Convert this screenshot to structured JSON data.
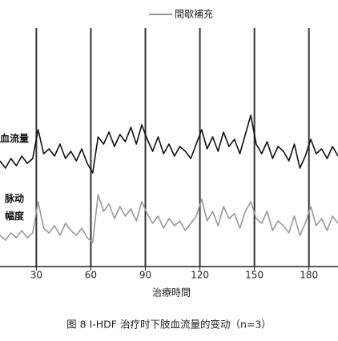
{
  "chart_data": {
    "type": "line",
    "title": "图 8   I-HDF 治疗时下肢血流量的变动（n=3）",
    "x_label": "治療時間",
    "annotation": {
      "text": "間歇補充",
      "x": [
        30,
        60,
        90,
        120,
        150,
        180
      ]
    },
    "xlim": [
      10,
      196
    ],
    "xticks": [
      30,
      60,
      90,
      120,
      150,
      180
    ],
    "ylim": [
      0,
      100
    ],
    "x": [
      10,
      13,
      16,
      19,
      22,
      25,
      28,
      31,
      34,
      37,
      40,
      43,
      46,
      49,
      52,
      55,
      58,
      61,
      64,
      67,
      70,
      73,
      76,
      79,
      82,
      85,
      88,
      91,
      94,
      97,
      100,
      103,
      106,
      109,
      112,
      115,
      118,
      121,
      124,
      127,
      130,
      133,
      136,
      139,
      142,
      145,
      148,
      151,
      154,
      157,
      160,
      163,
      166,
      169,
      172,
      175,
      178,
      181,
      184,
      187,
      190,
      193,
      196
    ],
    "series": [
      {
        "name": "血流量",
        "color": "#111111",
        "values": [
          43,
          40,
          44,
          41,
          45,
          42,
          44,
          56,
          46,
          48,
          45,
          50,
          44,
          47,
          43,
          48,
          42,
          38,
          53,
          50,
          55,
          49,
          54,
          51,
          57,
          50,
          58,
          52,
          47,
          53,
          46,
          50,
          45,
          49,
          47,
          44,
          50,
          56,
          48,
          53,
          47,
          55,
          49,
          52,
          46,
          54,
          62,
          50,
          46,
          51,
          44,
          49,
          47,
          43,
          50,
          40,
          45,
          52,
          46,
          48,
          44,
          49,
          45
        ]
      },
      {
        "name": "脉动幅度",
        "color": "#999999",
        "values": [
          12,
          10,
          13,
          11,
          14,
          11,
          13,
          26,
          15,
          13,
          16,
          12,
          17,
          14,
          12,
          15,
          11,
          9,
          29,
          22,
          25,
          19,
          24,
          20,
          23,
          18,
          26,
          21,
          17,
          20,
          15,
          19,
          16,
          18,
          14,
          17,
          20,
          27,
          18,
          22,
          16,
          24,
          19,
          21,
          15,
          22,
          26,
          19,
          17,
          22,
          14,
          18,
          16,
          13,
          20,
          12,
          17,
          24,
          16,
          19,
          14,
          20,
          17
        ]
      }
    ]
  }
}
